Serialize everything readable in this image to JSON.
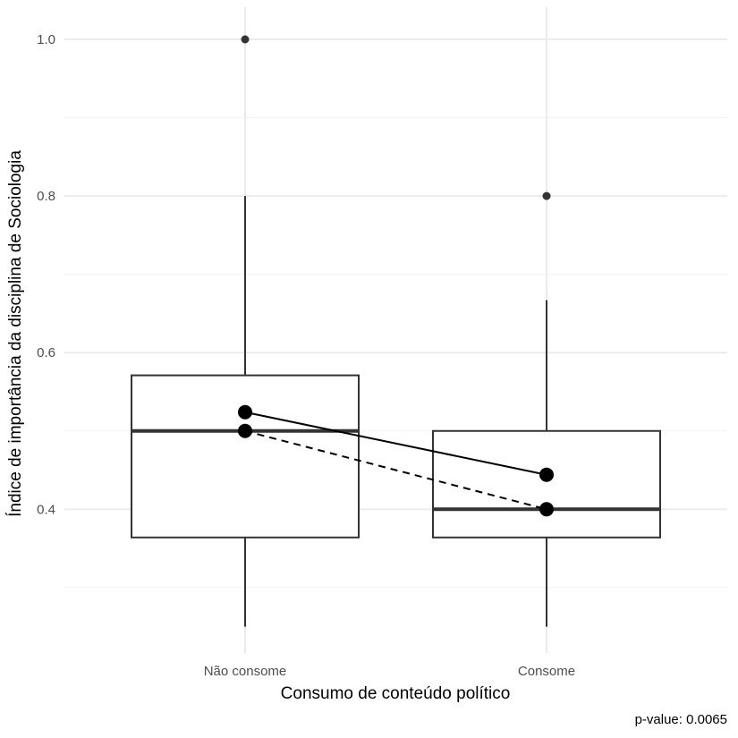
{
  "chart_data": {
    "type": "boxplot",
    "xlabel": "Consumo de conteúdo político",
    "ylabel": "Índice de importância da disciplina de Sociologia",
    "caption": "p-value: 0.0065",
    "categories": [
      "Não consome",
      "Consome"
    ],
    "y_ticks": [
      0.4,
      0.6,
      0.8,
      1.0
    ],
    "y_tick_labels": [
      "0.4",
      "0.6",
      "0.8",
      "1.0"
    ],
    "y_minor_ticks": [
      0.3,
      0.5,
      0.7,
      0.9
    ],
    "ylim": [
      0.22,
      1.03
    ],
    "grid": true,
    "boxes": [
      {
        "category": "Não consome",
        "whisker_low": 0.25,
        "q1": 0.364,
        "median": 0.5,
        "q3": 0.571,
        "whisker_high": 0.8,
        "outliers": [
          1.0
        ]
      },
      {
        "category": "Consome",
        "whisker_low": 0.25,
        "q1": 0.364,
        "median": 0.4,
        "q3": 0.5,
        "whisker_high": 0.667,
        "outliers": [
          0.8
        ]
      }
    ],
    "mean_line": {
      "style": "solid",
      "values": [
        0.524,
        0.444
      ]
    },
    "median_line": {
      "style": "dashed",
      "values": [
        0.5,
        0.4
      ]
    },
    "colors": {
      "box_stroke": "#333333",
      "box_fill": "#ffffff",
      "grid_major": "#ebebeb",
      "grid_minor": "#f3f3f3",
      "points": "#000000",
      "outlier": "#333333"
    }
  }
}
